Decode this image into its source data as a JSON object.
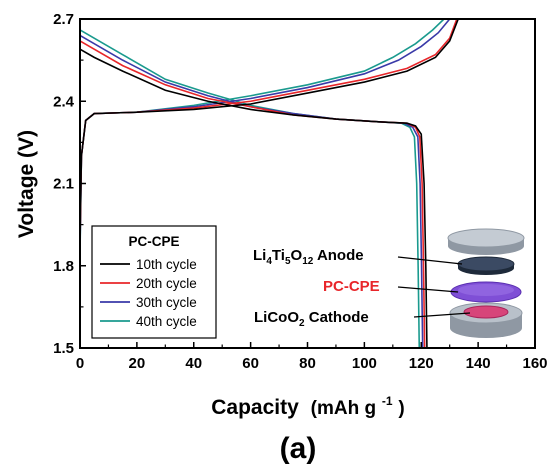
{
  "chart_data": {
    "type": "line",
    "xlabel": "Capacity",
    "xlabel_unit": "(mAh g",
    "xlabel_unit_sup": "-1",
    "xlabel_unit_close": ")",
    "ylabel": "Voltage (V)",
    "xlim": [
      0,
      160
    ],
    "ylim": [
      1.5,
      2.7
    ],
    "x_ticks": [
      "0",
      "20",
      "40",
      "60",
      "80",
      "100",
      "120",
      "140",
      "160"
    ],
    "y_ticks": [
      "1.5",
      "1.8",
      "2.1",
      "2.4",
      "2.7"
    ],
    "panel_label": "(a)",
    "legend": {
      "title": "PC-CPE",
      "placement": "lower-left"
    },
    "series": [
      {
        "name": "10th cycle",
        "color": "#000000",
        "discharge": [
          [
            0,
            2.59
          ],
          [
            5,
            2.56
          ],
          [
            15,
            2.51
          ],
          [
            30,
            2.44
          ],
          [
            45,
            2.4
          ],
          [
            60,
            2.37
          ],
          [
            75,
            2.35
          ],
          [
            90,
            2.335
          ],
          [
            105,
            2.325
          ],
          [
            115,
            2.32
          ],
          [
            118,
            2.31
          ],
          [
            120,
            2.28
          ],
          [
            121,
            2.1
          ],
          [
            121.6,
            1.8
          ],
          [
            122,
            1.5
          ]
        ],
        "charge": [
          [
            0,
            1.9
          ],
          [
            0.5,
            2.2
          ],
          [
            2,
            2.33
          ],
          [
            5,
            2.355
          ],
          [
            20,
            2.36
          ],
          [
            40,
            2.37
          ],
          [
            60,
            2.39
          ],
          [
            80,
            2.43
          ],
          [
            100,
            2.47
          ],
          [
            115,
            2.51
          ],
          [
            125,
            2.56
          ],
          [
            130,
            2.62
          ],
          [
            133,
            2.7
          ]
        ]
      },
      {
        "name": "20th cycle",
        "color": "#e8262a",
        "discharge": [
          [
            0,
            2.62
          ],
          [
            5,
            2.59
          ],
          [
            15,
            2.53
          ],
          [
            30,
            2.46
          ],
          [
            45,
            2.41
          ],
          [
            60,
            2.38
          ],
          [
            75,
            2.35
          ],
          [
            90,
            2.335
          ],
          [
            105,
            2.325
          ],
          [
            115,
            2.32
          ],
          [
            118,
            2.305
          ],
          [
            119.5,
            2.27
          ],
          [
            120.3,
            2.1
          ],
          [
            120.8,
            1.8
          ],
          [
            121.2,
            1.5
          ]
        ],
        "charge": [
          [
            0,
            1.88
          ],
          [
            0.5,
            2.2
          ],
          [
            2,
            2.33
          ],
          [
            5,
            2.355
          ],
          [
            20,
            2.36
          ],
          [
            40,
            2.375
          ],
          [
            60,
            2.4
          ],
          [
            80,
            2.44
          ],
          [
            100,
            2.48
          ],
          [
            115,
            2.52
          ],
          [
            125,
            2.57
          ],
          [
            130,
            2.63
          ],
          [
            132.5,
            2.7
          ]
        ]
      },
      {
        "name": "30th cycle",
        "color": "#3a3aa8",
        "discharge": [
          [
            0,
            2.64
          ],
          [
            5,
            2.61
          ],
          [
            15,
            2.55
          ],
          [
            30,
            2.47
          ],
          [
            45,
            2.42
          ],
          [
            60,
            2.38
          ],
          [
            75,
            2.355
          ],
          [
            90,
            2.335
          ],
          [
            105,
            2.325
          ],
          [
            114,
            2.32
          ],
          [
            117,
            2.305
          ],
          [
            118.8,
            2.27
          ],
          [
            119.6,
            2.1
          ],
          [
            120.1,
            1.8
          ],
          [
            120.5,
            1.5
          ]
        ],
        "charge": [
          [
            0,
            1.86
          ],
          [
            0.5,
            2.2
          ],
          [
            2,
            2.33
          ],
          [
            5,
            2.355
          ],
          [
            20,
            2.36
          ],
          [
            40,
            2.38
          ],
          [
            60,
            2.41
          ],
          [
            80,
            2.45
          ],
          [
            100,
            2.5
          ],
          [
            112,
            2.55
          ],
          [
            120,
            2.6
          ],
          [
            126,
            2.65
          ],
          [
            130,
            2.7
          ]
        ]
      },
      {
        "name": "40th cycle",
        "color": "#1a9a8e",
        "discharge": [
          [
            0,
            2.66
          ],
          [
            5,
            2.63
          ],
          [
            15,
            2.57
          ],
          [
            30,
            2.48
          ],
          [
            45,
            2.43
          ],
          [
            60,
            2.385
          ],
          [
            75,
            2.355
          ],
          [
            90,
            2.335
          ],
          [
            105,
            2.325
          ],
          [
            113,
            2.32
          ],
          [
            116,
            2.305
          ],
          [
            117.6,
            2.27
          ],
          [
            118.4,
            2.1
          ],
          [
            118.9,
            1.8
          ],
          [
            119.3,
            1.5
          ]
        ],
        "charge": [
          [
            0,
            1.84
          ],
          [
            0.5,
            2.2
          ],
          [
            2,
            2.33
          ],
          [
            5,
            2.355
          ],
          [
            20,
            2.36
          ],
          [
            40,
            2.385
          ],
          [
            60,
            2.42
          ],
          [
            80,
            2.46
          ],
          [
            100,
            2.51
          ],
          [
            110,
            2.56
          ],
          [
            118,
            2.61
          ],
          [
            124,
            2.66
          ],
          [
            128,
            2.7
          ]
        ]
      }
    ],
    "annotations": [
      {
        "text": "Li",
        "sub1": "4",
        "mid": "Ti",
        "sub2": "5",
        "mid2": "O",
        "sub3": "12",
        "tail": " Anode",
        "color": "#000000"
      },
      {
        "text": "PC-CPE",
        "color": "#e8262a"
      },
      {
        "text": "LiCoO",
        "sub1": "2",
        "tail": " Cathode",
        "color": "#000000"
      }
    ]
  }
}
